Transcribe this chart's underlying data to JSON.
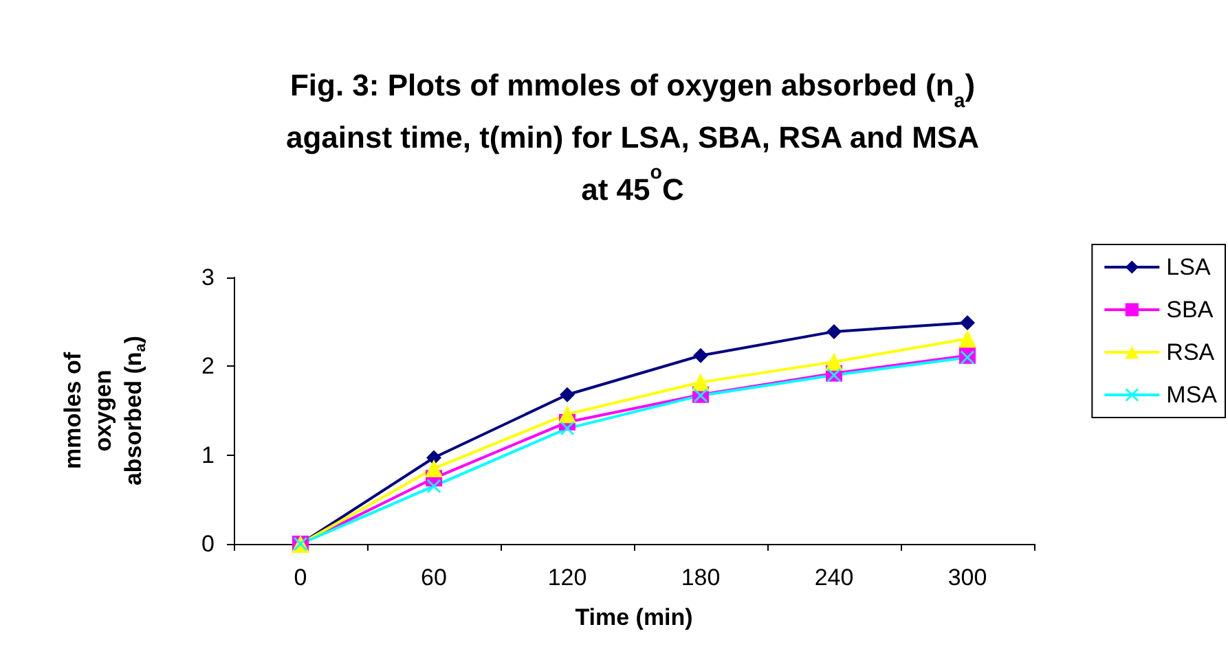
{
  "chart_data": {
    "type": "line",
    "title": "Fig. 3: Plots of mmoles of oxygen absorbed (n$_{a}$)\nagainst time, t(min) for LSA, SBA, RSA and MSA\nat 45$^{o}$C",
    "xlabel": "Time (min)",
    "ylabel": "mmoles of\noxygen\nabsorbed (n$_{a}$)",
    "categories": [
      "0",
      "60",
      "120",
      "180",
      "240",
      "300"
    ],
    "series": [
      {
        "name": "LSA",
        "color": "#000080",
        "marker": "diamond",
        "values": [
          0,
          0.97,
          1.68,
          2.12,
          2.39,
          2.49
        ]
      },
      {
        "name": "SBA",
        "color": "#ff00ff",
        "marker": "square",
        "values": [
          0,
          0.74,
          1.37,
          1.68,
          1.92,
          2.12
        ]
      },
      {
        "name": "RSA",
        "color": "#ffff00",
        "marker": "triangle",
        "values": [
          0,
          0.85,
          1.46,
          1.82,
          2.05,
          2.31
        ]
      },
      {
        "name": "MSA",
        "color": "#00ffff",
        "marker": "cross",
        "values": [
          0,
          0.65,
          1.3,
          1.67,
          1.9,
          2.1
        ]
      }
    ],
    "ylim": [
      0,
      3
    ],
    "yticks": [
      0,
      1,
      2,
      3
    ],
    "grid": false,
    "legend": "right",
    "line_style": "solid"
  }
}
